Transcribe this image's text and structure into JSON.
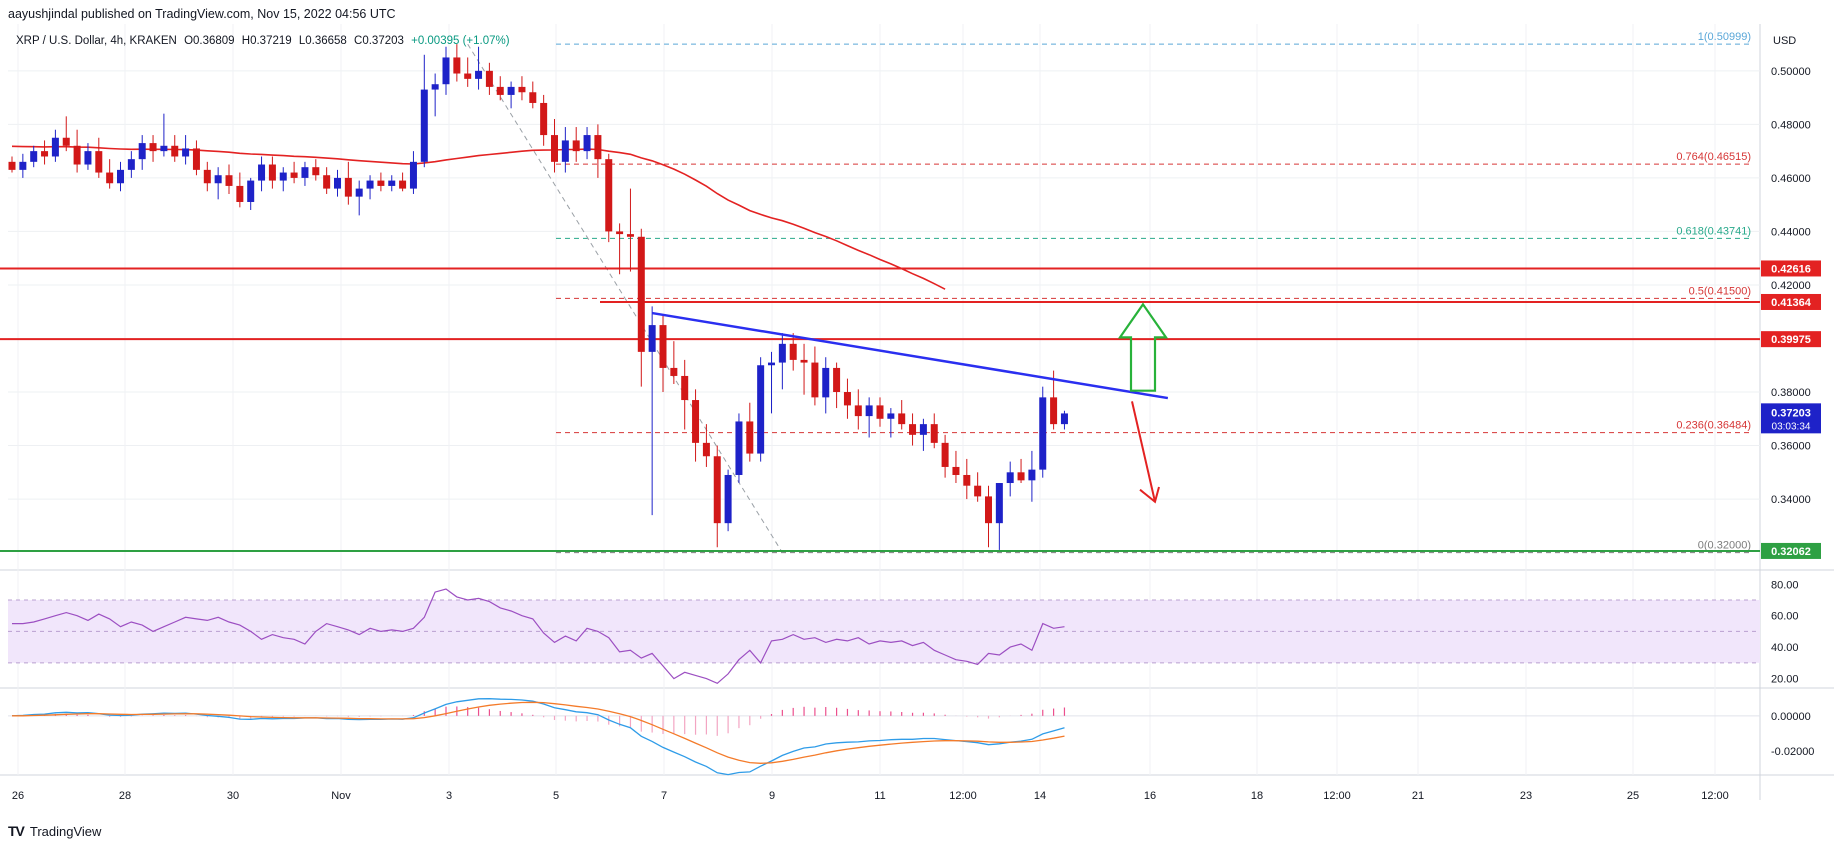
{
  "header": {
    "publisher": "aayushjindal published on TradingView.com, Nov 15, 2022 04:56 UTC"
  },
  "symbol": {
    "name": "XRP / U.S. Dollar, 4h, KRAKEN",
    "open": "O0.36809",
    "high": "H0.37219",
    "low": "L0.36658",
    "close": "C0.37203",
    "change": "+0.00395 (+1.07%)"
  },
  "footer": {
    "brand": "TradingView",
    "logo": "TV"
  },
  "colors": {
    "bull": "#1e22c8",
    "bear": "#d21818",
    "ma": "#e32222",
    "hline": "#e32222",
    "support": "#2ea043",
    "trendline": "#2a2ff0",
    "rsi": "#9c4fc2",
    "rsi_band": "#f1e6fb",
    "macd": "#2f9ce8",
    "signal": "#f47b2a",
    "hist_pos": "#ec4f8d",
    "fib_grey": "#9aa0a6"
  },
  "chart_data": [
    {
      "type": "candlestick",
      "title": "XRP / U.S. Dollar, 4h, KRAKEN",
      "currency_label": "USD",
      "x_ticks": [
        "26",
        "28",
        "30",
        "Nov",
        "3",
        "5",
        "7",
        "9",
        "11",
        "12:00",
        "14",
        "16",
        "18",
        "12:00",
        "21",
        "23",
        "25",
        "12:00"
      ],
      "y_ticks": [
        "0.50000",
        "0.48000",
        "0.46000",
        "0.44000",
        "0.42000",
        "0.40000",
        "0.38000",
        "0.36000",
        "0.34000"
      ],
      "ylim": [
        0.3135,
        0.5175
      ],
      "candles": [
        [
          0.466,
          0.468,
          0.462,
          0.463
        ],
        [
          0.463,
          0.469,
          0.46,
          0.466
        ],
        [
          0.466,
          0.472,
          0.464,
          0.47
        ],
        [
          0.47,
          0.474,
          0.465,
          0.468
        ],
        [
          0.468,
          0.478,
          0.466,
          0.475
        ],
        [
          0.475,
          0.483,
          0.47,
          0.472
        ],
        [
          0.472,
          0.478,
          0.462,
          0.465
        ],
        [
          0.465,
          0.473,
          0.463,
          0.47
        ],
        [
          0.47,
          0.475,
          0.46,
          0.462
        ],
        [
          0.462,
          0.467,
          0.456,
          0.458
        ],
        [
          0.458,
          0.466,
          0.455,
          0.463
        ],
        [
          0.463,
          0.47,
          0.46,
          0.467
        ],
        [
          0.467,
          0.476,
          0.463,
          0.473
        ],
        [
          0.473,
          0.476,
          0.466,
          0.47
        ],
        [
          0.47,
          0.484,
          0.468,
          0.472
        ],
        [
          0.472,
          0.476,
          0.466,
          0.468
        ],
        [
          0.468,
          0.476,
          0.465,
          0.471
        ],
        [
          0.471,
          0.474,
          0.461,
          0.463
        ],
        [
          0.463,
          0.466,
          0.455,
          0.458
        ],
        [
          0.458,
          0.464,
          0.452,
          0.461
        ],
        [
          0.461,
          0.465,
          0.454,
          0.457
        ],
        [
          0.457,
          0.462,
          0.449,
          0.451
        ],
        [
          0.451,
          0.46,
          0.448,
          0.459
        ],
        [
          0.459,
          0.468,
          0.455,
          0.465
        ],
        [
          0.465,
          0.468,
          0.456,
          0.459
        ],
        [
          0.459,
          0.464,
          0.455,
          0.462
        ],
        [
          0.462,
          0.466,
          0.458,
          0.46
        ],
        [
          0.46,
          0.466,
          0.457,
          0.464
        ],
        [
          0.464,
          0.467,
          0.459,
          0.461
        ],
        [
          0.461,
          0.464,
          0.454,
          0.456
        ],
        [
          0.456,
          0.463,
          0.453,
          0.46
        ],
        [
          0.46,
          0.466,
          0.45,
          0.453
        ],
        [
          0.453,
          0.459,
          0.446,
          0.456
        ],
        [
          0.456,
          0.461,
          0.452,
          0.459
        ],
        [
          0.459,
          0.462,
          0.455,
          0.457
        ],
        [
          0.457,
          0.461,
          0.455,
          0.459
        ],
        [
          0.459,
          0.462,
          0.455,
          0.456
        ],
        [
          0.456,
          0.47,
          0.454,
          0.466
        ],
        [
          0.466,
          0.506,
          0.464,
          0.493
        ],
        [
          0.493,
          0.499,
          0.483,
          0.495
        ],
        [
          0.495,
          0.509,
          0.491,
          0.505
        ],
        [
          0.505,
          0.51,
          0.496,
          0.499
        ],
        [
          0.499,
          0.505,
          0.494,
          0.497
        ],
        [
          0.497,
          0.509,
          0.493,
          0.5
        ],
        [
          0.5,
          0.503,
          0.491,
          0.494
        ],
        [
          0.494,
          0.498,
          0.489,
          0.491
        ],
        [
          0.491,
          0.496,
          0.486,
          0.494
        ],
        [
          0.494,
          0.498,
          0.489,
          0.492
        ],
        [
          0.492,
          0.496,
          0.486,
          0.488
        ],
        [
          0.488,
          0.491,
          0.472,
          0.476
        ],
        [
          0.476,
          0.482,
          0.462,
          0.466
        ],
        [
          0.466,
          0.479,
          0.462,
          0.474
        ],
        [
          0.474,
          0.479,
          0.466,
          0.47
        ],
        [
          0.47,
          0.479,
          0.467,
          0.476
        ],
        [
          0.476,
          0.48,
          0.46,
          0.467
        ],
        [
          0.467,
          0.469,
          0.436,
          0.44
        ],
        [
          0.44,
          0.443,
          0.424,
          0.439
        ],
        [
          0.439,
          0.456,
          0.425,
          0.438
        ],
        [
          0.438,
          0.441,
          0.382,
          0.395
        ],
        [
          0.395,
          0.412,
          0.334,
          0.405
        ],
        [
          0.405,
          0.409,
          0.38,
          0.389
        ],
        [
          0.389,
          0.399,
          0.383,
          0.386
        ],
        [
          0.386,
          0.392,
          0.366,
          0.377
        ],
        [
          0.377,
          0.381,
          0.354,
          0.361
        ],
        [
          0.361,
          0.368,
          0.352,
          0.356
        ],
        [
          0.356,
          0.36,
          0.322,
          0.331
        ],
        [
          0.331,
          0.351,
          0.328,
          0.349
        ],
        [
          0.349,
          0.372,
          0.346,
          0.369
        ],
        [
          0.369,
          0.376,
          0.354,
          0.357
        ],
        [
          0.357,
          0.393,
          0.354,
          0.39
        ],
        [
          0.39,
          0.395,
          0.372,
          0.391
        ],
        [
          0.391,
          0.402,
          0.381,
          0.398
        ],
        [
          0.398,
          0.402,
          0.388,
          0.392
        ],
        [
          0.392,
          0.398,
          0.379,
          0.391
        ],
        [
          0.391,
          0.397,
          0.375,
          0.378
        ],
        [
          0.378,
          0.393,
          0.372,
          0.389
        ],
        [
          0.389,
          0.391,
          0.374,
          0.38
        ],
        [
          0.38,
          0.385,
          0.37,
          0.375
        ],
        [
          0.375,
          0.381,
          0.366,
          0.371
        ],
        [
          0.371,
          0.378,
          0.363,
          0.375
        ],
        [
          0.375,
          0.378,
          0.367,
          0.37
        ],
        [
          0.37,
          0.374,
          0.363,
          0.372
        ],
        [
          0.372,
          0.377,
          0.366,
          0.368
        ],
        [
          0.368,
          0.372,
          0.36,
          0.364
        ],
        [
          0.364,
          0.37,
          0.358,
          0.368
        ],
        [
          0.368,
          0.372,
          0.359,
          0.361
        ],
        [
          0.361,
          0.364,
          0.348,
          0.352
        ],
        [
          0.352,
          0.358,
          0.346,
          0.349
        ],
        [
          0.349,
          0.355,
          0.34,
          0.345
        ],
        [
          0.345,
          0.35,
          0.339,
          0.341
        ],
        [
          0.341,
          0.345,
          0.322,
          0.331
        ],
        [
          0.331,
          0.346,
          0.321,
          0.346
        ],
        [
          0.346,
          0.354,
          0.341,
          0.35
        ],
        [
          0.35,
          0.355,
          0.346,
          0.347
        ],
        [
          0.347,
          0.358,
          0.339,
          0.351
        ],
        [
          0.351,
          0.382,
          0.348,
          0.378
        ],
        [
          0.378,
          0.388,
          0.366,
          0.368
        ],
        [
          0.368,
          0.373,
          0.366,
          0.372
        ]
      ],
      "ma_period": 50,
      "horizontal_levels": [
        {
          "price": 0.42616,
          "label": "0.42616",
          "color": "#e32222"
        },
        {
          "price": 0.41364,
          "label": "0.41364",
          "color": "#e32222"
        },
        {
          "price": 0.39975,
          "label": "0.39975",
          "color": "#e32222"
        },
        {
          "price": 0.32062,
          "label": "0.32062",
          "color": "#2ea043"
        }
      ],
      "last_price": {
        "label": "0.37203",
        "countdown": "03:03:34"
      },
      "fib_levels": [
        {
          "label": "1(0.50999)",
          "price": 0.50999,
          "color": "#5aa7d8"
        },
        {
          "label": "0.764(0.46515)",
          "price": 0.46515,
          "color": "#d63636"
        },
        {
          "label": "0.618(0.43741)",
          "price": 0.43741,
          "color": "#28a98b"
        },
        {
          "label": "0.5(0.41500)",
          "price": 0.415,
          "color": "#d63636"
        },
        {
          "label": "0.236(0.36484)",
          "price": 0.36484,
          "color": "#d63636"
        },
        {
          "label": "0(0.32000)",
          "price": 0.32,
          "color": "#7c7c7c"
        }
      ],
      "trendline": {
        "from": {
          "bar": 59,
          "price": 0.4095
        },
        "to": {
          "bar": 101,
          "price": 0.3755
        }
      }
    },
    {
      "type": "line",
      "name": "RSI",
      "y_ticks": [
        "80.00",
        "60.00",
        "40.00",
        "20.00"
      ],
      "ylim": [
        14,
        84
      ],
      "band": [
        30,
        70
      ],
      "values": [
        55,
        55,
        56,
        58,
        60,
        62,
        60,
        57,
        61,
        58,
        53,
        56,
        54,
        50,
        53,
        56,
        59,
        58,
        57,
        59,
        56,
        54,
        50,
        45,
        48,
        46,
        45,
        42,
        50,
        55,
        53,
        51,
        48,
        52,
        50,
        51,
        50,
        52,
        59,
        75,
        77,
        72,
        70,
        71,
        69,
        65,
        63,
        60,
        58,
        49,
        43,
        47,
        44,
        52,
        50,
        46,
        37,
        38,
        33,
        36,
        28,
        20,
        24,
        22,
        20,
        17,
        23,
        32,
        38,
        30,
        44,
        45,
        48,
        45,
        46,
        43,
        45,
        44,
        46,
        42,
        44,
        43,
        44,
        41,
        43,
        38,
        35,
        32,
        31,
        29,
        36,
        35,
        40,
        42,
        38,
        55,
        52,
        53
      ]
    },
    {
      "type": "line",
      "name": "MACD",
      "y_ticks": [
        "0.00000",
        "-0.02000"
      ],
      "ylim": [
        -0.0335,
        0.0135
      ]
    }
  ]
}
